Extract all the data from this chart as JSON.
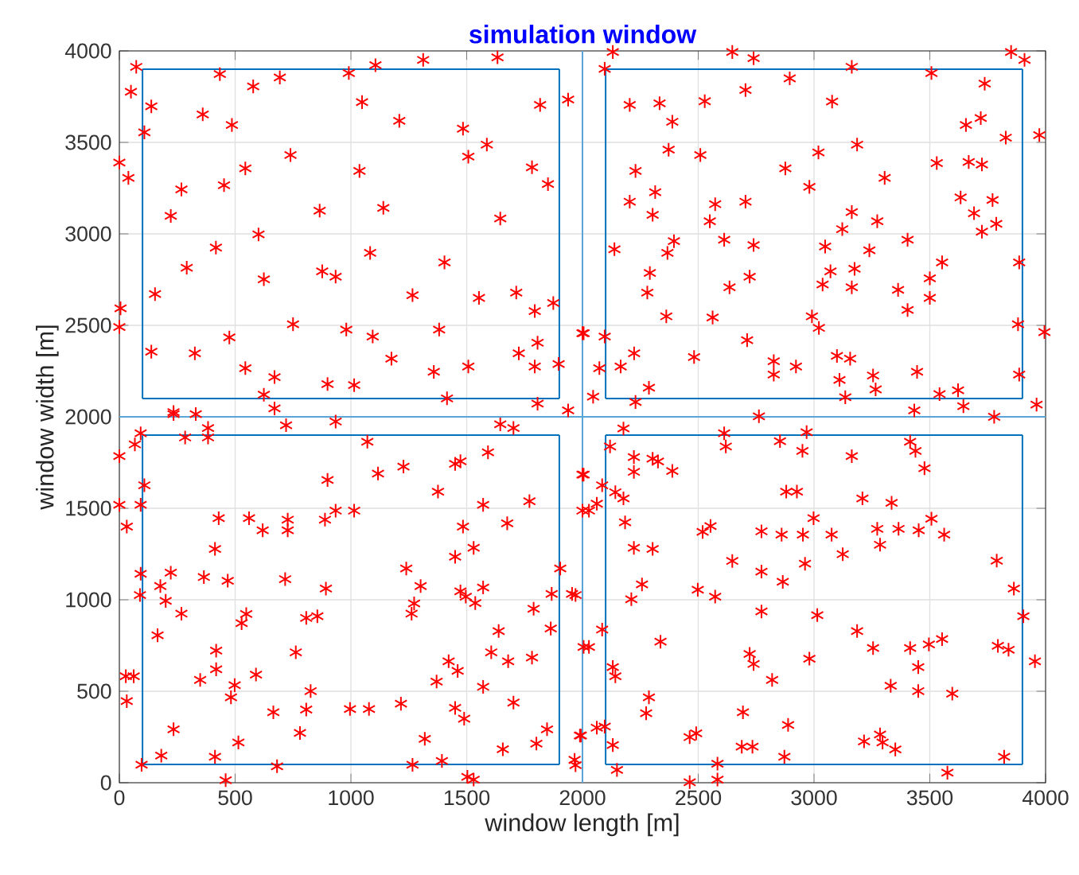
{
  "chart_data": {
    "type": "scatter",
    "title": "simulation window",
    "xlabel": "window length [m]",
    "ylabel": "window width [m]",
    "xlim": [
      0,
      4000
    ],
    "ylim": [
      0,
      4000
    ],
    "xticks": [
      0,
      500,
      1000,
      1500,
      2000,
      2500,
      3000,
      3500,
      4000
    ],
    "yticks": [
      0,
      500,
      1000,
      1500,
      2000,
      2500,
      3000,
      3500,
      4000
    ],
    "grid": true,
    "series": [
      {
        "marker": "cross",
        "color": "#ff0000",
        "x": [
          73,
          50,
          138,
          108,
          0,
          39,
          268,
          222,
          452,
          544,
          578,
          693,
          739,
          486,
          360,
          434,
          601,
          865,
          1037,
          1048,
          991,
          1106,
          1312,
          1209,
          1140,
          1083,
          1484,
          1507,
          1587,
          1645,
          1633,
          1782,
          1851,
          1817,
          1938,
          291,
          417,
          154,
          5,
          0,
          624,
          876,
          934,
          750,
          980,
          1094,
          1266,
          1404,
          1553,
          1381,
          1714,
          1794,
          1874,
          2000,
          138,
          326,
          475,
          544,
          670,
          899,
          1014,
          1175,
          1358,
          1507,
          1725,
          1794,
          1806,
          1897,
          1415,
          624,
          1806,
          1938,
          234,
          330
        ],
        "values": [
          3913,
          3777,
          3697,
          3555,
          3390,
          3306,
          3243,
          3098,
          3266,
          3358,
          3806,
          3855,
          3431,
          3595,
          3653,
          3873,
          2997,
          3127,
          3344,
          3720,
          3879,
          3922,
          3951,
          3618,
          3142,
          2896,
          3575,
          3422,
          3488,
          3084,
          3965,
          3364,
          3272,
          3705,
          3734,
          2815,
          2925,
          2671,
          2593,
          2491,
          2752,
          2795,
          2766,
          2506,
          2477,
          2439,
          2665,
          2844,
          2650,
          2477,
          2679,
          2578,
          2622,
          2457,
          2356,
          2347,
          2434,
          2266,
          2217,
          2179,
          2173,
          2318,
          2246,
          2275,
          2347,
          2275,
          2405,
          2289,
          2101,
          2121,
          2072,
          2035,
          2015,
          2015
        ]
      },
      {
        "marker": "cross",
        "color": "#ff0000",
        "x": [
          2131,
          2096,
          2647,
          2739,
          2704,
          2895,
          3163,
          3507,
          3737,
          3851,
          3909,
          3973,
          2204,
          2333,
          2388,
          2528,
          3078,
          2372,
          2509,
          2229,
          2314,
          2204,
          2303,
          2573,
          2704,
          2550,
          2876,
          2980,
          3019,
          3186,
          3305,
          3530,
          3668,
          3725,
          3656,
          3720,
          3828,
          3633,
          3771,
          3691,
          3725,
          3787,
          3163,
          3122,
          3273,
          3404,
          3048,
          3071,
          3037,
          3175,
          3163,
          3239,
          2138,
          2395,
          2367,
          2612,
          2739,
          2291,
          2280,
          2635,
          2722,
          2362,
          2562,
          2991,
          3021,
          3363,
          3404,
          3500,
          3500,
          3553,
          3886,
          3881,
          3995,
          2005,
          2096,
          2711,
          2482,
          2223,
          2165,
          2073,
          2046,
          2229,
          2287,
          2826,
          2826,
          2922,
          3099,
          3156,
          3110,
          3135,
          3255,
          3266,
          3445,
          3542,
          3622,
          3645,
          3886,
          3961,
          3433,
          3778
        ],
        "values": [
          3994,
          3902,
          3994,
          3960,
          3786,
          3850,
          3913,
          3879,
          3821,
          3994,
          3951,
          3540,
          3705,
          3714,
          3613,
          3725,
          3723,
          3460,
          3431,
          3344,
          3228,
          3176,
          3104,
          3162,
          3176,
          3069,
          3358,
          3257,
          3445,
          3488,
          3306,
          3387,
          3393,
          3379,
          3595,
          3633,
          3526,
          3199,
          3185,
          3113,
          3012,
          3055,
          3119,
          3026,
          3069,
          2968,
          2931,
          2795,
          2723,
          2809,
          2708,
          2910,
          2916,
          2960,
          2896,
          2968,
          2939,
          2786,
          2679,
          2708,
          2766,
          2549,
          2543,
          2549,
          2486,
          2694,
          2584,
          2757,
          2650,
          2844,
          2844,
          2506,
          2463,
          2457,
          2439,
          2419,
          2327,
          2347,
          2275,
          2266,
          2110,
          2081,
          2159,
          2304,
          2231,
          2275,
          2333,
          2318,
          2202,
          2107,
          2226,
          2150,
          2246,
          2124,
          2145,
          2058,
          2231,
          2067,
          2035,
          2000
        ]
      },
      {
        "marker": "cross",
        "color": "#ff0000",
        "x": [
          0,
          92,
          67,
          234,
          284,
          383,
          383,
          670,
          720,
          934,
          1071,
          1117,
          1227,
          899,
          1014,
          934,
          888,
          727,
          727,
          619,
          560,
          429,
          413,
          108,
          92,
          32,
          0,
          92,
          222,
          177,
          200,
          268,
          89,
          365,
          468,
          716,
          892,
          548,
          528,
          807,
          855,
          165,
          418,
          762,
          349,
          418,
          498,
          590,
          482,
          826,
          807,
          665,
          780,
          28,
          62,
          32,
          234,
          181,
          96,
          413,
          514,
          459,
          681,
          996,
          1078,
          1216,
          1319,
          1266,
          1393,
          1503,
          1530,
          1450,
          1489,
          1571,
          1370,
          1461,
          1422,
          1606,
          1679,
          1638,
          1782,
          1863,
          1789,
          1867,
          1955,
          1904,
          1702,
          1847,
          1801,
          1656,
          1966,
          1262,
          1273,
          1301,
          1239,
          1473,
          1496,
          1537,
          1571,
          1450,
          1530,
          1484,
          1571,
          1376,
          1675,
          1771,
          1592,
          1473,
          1450,
          1645,
          1702,
          2000,
          2000,
          2005,
          1989
        ],
        "values": [
          1785,
          1910,
          1849,
          2026,
          1887,
          1887,
          1939,
          2046,
          1954,
          1974,
          1864,
          1690,
          1728,
          1655,
          1487,
          1487,
          1438,
          1438,
          1380,
          1380,
          1446,
          1446,
          1278,
          1626,
          1519,
          1400,
          1519,
          1142,
          1148,
          1075,
          994,
          924,
          1026,
          1124,
          1104,
          1113,
          1061,
          922,
          872,
          901,
          910,
          806,
          722,
          713,
          562,
          620,
          533,
          591,
          467,
          501,
          400,
          385,
          272,
          582,
          582,
          446,
          292,
          148,
          98,
          142,
          220,
          14,
          90,
          403,
          403,
          432,
          240,
          98,
          119,
          32,
          17,
          409,
          350,
          524,
          553,
          611,
          664,
          713,
          664,
          829,
          684,
          843,
          951,
          1032,
          1032,
          1171,
          438,
          292,
          214,
          183,
          125,
          924,
          980,
          1075,
          1171,
          1046,
          1017,
          982,
          1067,
          1235,
          1284,
          1400,
          1519,
          1591,
          1418,
          1539,
          1806,
          1757,
          1743,
          1959,
          1939,
          1684,
          1487,
          742,
          258
        ]
      },
      {
        "marker": "cross",
        "color": "#ff0000",
        "x": [
          2005,
          2028,
          2062,
          2085,
          2142,
          2177,
          2119,
          2177,
          2222,
          2222,
          2303,
          2326,
          2388,
          2184,
          2222,
          2303,
          2257,
          2211,
          1970,
          2085,
          2028,
          2337,
          2131,
          2142,
          2498,
          2573,
          2519,
          2553,
          2647,
          2773,
          2865,
          2773,
          2773,
          2860,
          2952,
          2998,
          3076,
          3124,
          2961,
          2880,
          2926,
          3209,
          3335,
          3273,
          3285,
          3365,
          3452,
          3507,
          3562,
          3415,
          3438,
          3477,
          3163,
          2950,
          2968,
          2853,
          2619,
          2612,
          2762,
          3014,
          2980,
          2722,
          2739,
          2819,
          3186,
          3255,
          3415,
          3496,
          3553,
          3450,
          3331,
          3450,
          3597,
          3789,
          3863,
          3904,
          3794,
          3840,
          3954,
          2287,
          2275,
          2693,
          2888,
          2463,
          2491,
          2688,
          2734,
          2872,
          2583,
          2583,
          2463,
          3216,
          3285,
          3296,
          3351,
          3576,
          3821,
          1993,
          2062,
          2096,
          2131,
          2149,
          1970
        ],
        "values": [
          1684,
          1487,
          1525,
          1626,
          1588,
          1554,
          1838,
          1936,
          1780,
          1699,
          1771,
          1756,
          1704,
          1423,
          1284,
          1278,
          1084,
          1003,
          1026,
          837,
          742,
          771,
          632,
          582,
          1055,
          1017,
          1371,
          1403,
          1212,
          1154,
          1098,
          936,
          1374,
          1356,
          1356,
          1446,
          1356,
          1249,
          1197,
          1591,
          1591,
          1554,
          1530,
          1388,
          1301,
          1388,
          1380,
          1443,
          1356,
          1864,
          1814,
          1719,
          1785,
          1814,
          1916,
          1867,
          1838,
          1910,
          2003,
          916,
          678,
          704,
          649,
          562,
          829,
          736,
          736,
          756,
          785,
          632,
          530,
          501,
          487,
          1214,
          1061,
          910,
          748,
          727,
          664,
          467,
          380,
          385,
          316,
          249,
          270,
          197,
          197,
          142,
          104,
          17,
          3,
          226,
          264,
          220,
          182,
          55,
          142,
          258,
          301,
          307,
          206,
          70,
          96
        ]
      },
      {
        "type": "line",
        "color": "#5aa5d8",
        "x": [
          2000,
          2000
        ],
        "values": [
          0,
          4000
        ]
      },
      {
        "type": "line",
        "color": "#5aa5d8",
        "x": [
          0,
          4000
        ],
        "values": [
          2000,
          2000
        ]
      },
      {
        "type": "line",
        "color": "#0072bd",
        "x": [
          100,
          1900
        ],
        "values": [
          2100,
          2100
        ]
      },
      {
        "type": "line",
        "color": "#0072bd",
        "x": [
          100,
          1900
        ],
        "values": [
          3900,
          3900
        ]
      },
      {
        "type": "line",
        "color": "#0072bd",
        "x": [
          100,
          100
        ],
        "values": [
          2100,
          3900
        ]
      },
      {
        "type": "line",
        "color": "#0072bd",
        "x": [
          1900,
          1900
        ],
        "values": [
          2100,
          3900
        ]
      },
      {
        "type": "line",
        "color": "#0072bd",
        "x": [
          2100,
          3900
        ],
        "values": [
          2100,
          2100
        ]
      },
      {
        "type": "line",
        "color": "#0072bd",
        "x": [
          2100,
          3900
        ],
        "values": [
          3900,
          3900
        ]
      },
      {
        "type": "line",
        "color": "#0072bd",
        "x": [
          2100,
          2100
        ],
        "values": [
          2100,
          3900
        ]
      },
      {
        "type": "line",
        "color": "#0072bd",
        "x": [
          3900,
          3900
        ],
        "values": [
          2100,
          3900
        ]
      },
      {
        "type": "line",
        "color": "#0072bd",
        "x": [
          100,
          1900
        ],
        "values": [
          100,
          100
        ]
      },
      {
        "type": "line",
        "color": "#0072bd",
        "x": [
          100,
          1900
        ],
        "values": [
          1900,
          1900
        ]
      },
      {
        "type": "line",
        "color": "#0072bd",
        "x": [
          100,
          100
        ],
        "values": [
          100,
          1900
        ]
      },
      {
        "type": "line",
        "color": "#0072bd",
        "x": [
          1900,
          1900
        ],
        "values": [
          100,
          1900
        ]
      },
      {
        "type": "line",
        "color": "#0072bd",
        "x": [
          2100,
          3900
        ],
        "values": [
          100,
          100
        ]
      },
      {
        "type": "line",
        "color": "#0072bd",
        "x": [
          2100,
          3900
        ],
        "values": [
          1900,
          1900
        ]
      },
      {
        "type": "line",
        "color": "#0072bd",
        "x": [
          2100,
          2100
        ],
        "values": [
          100,
          1900
        ]
      },
      {
        "type": "line",
        "color": "#0072bd",
        "x": [
          3900,
          3900
        ],
        "values": [
          100,
          1900
        ]
      }
    ]
  }
}
